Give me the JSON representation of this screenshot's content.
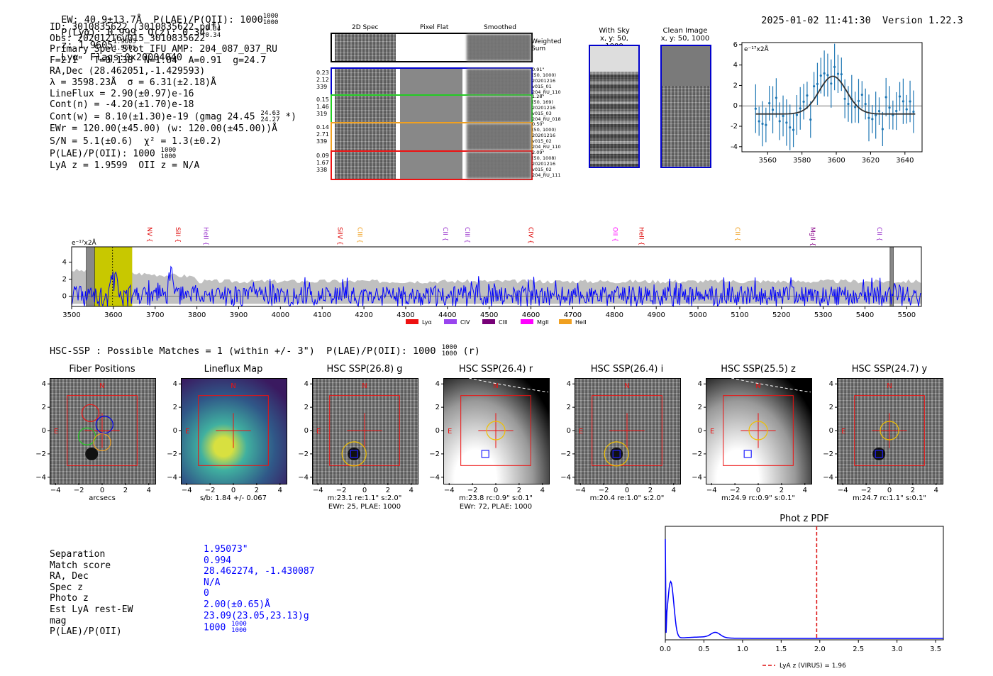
{
  "header": {
    "line": "EW: 40.9±13.7Å  P(LAE)/P(OII): 1000",
    "plae_frac": [
      "1000",
      "1000"
    ],
    "plya": "P(Lyα): 0.999  Q(z): 0.34",
    "q_frac": [
      "0.34",
      "0.34"
    ],
    "z": "z: 1.9605",
    "z_frac": [
      "1.9605",
      "1.9605"
    ],
    "lya_flags": "Lyα  Flags:0x20004040",
    "datetime": "2025-01-02 11:41:30",
    "version": "Version 1.22.3"
  },
  "info": {
    "lines": [
      "ID: 3010835622 (3010835622.pdf)",
      "Obs: 20201216v015_3010835622",
      "Primary Spec_Slot_IFU_AMP: 204_087_037_RU",
      "F=2.1\"  T=0.138  N=1.04  A=0.91  g=24.7",
      "RA,Dec (28.462051,-1.429593)",
      "λ = 3598.23Å  σ = 6.31(±2.18)Å",
      "LineFlux = 2.90(±0.97)e-16",
      "Cont(n) = -4.20(±1.70)e-18",
      "Cont(w) = 8.10(±1.30)e-19 (gmag 24.45",
      "EWr = 120.00(±45.00) (w: 120.00(±45.00))Å",
      "S/N = 5.1(±0.6)  χ² = 1.3(±0.2)",
      "P(LAE)/P(OII): 1000",
      "LyA z = 1.9599  OII z = N/A"
    ],
    "gmag_frac": [
      "24.63",
      "24.27"
    ],
    "gmag_tail": "*)",
    "plae_frac": [
      "1000",
      "1000"
    ]
  },
  "fibers": {
    "headers": [
      "2D Spec",
      "Pixel Flat",
      "Smoothed"
    ],
    "weighted": "Weighted Sum",
    "rows": [
      {
        "left": [
          "0.23",
          "2.12",
          "339"
        ],
        "right": [
          "0.91\"",
          "(50, 1000)",
          "20201216",
          "v015_01",
          "204_RU_110"
        ],
        "color": "#0000cc"
      },
      {
        "left": [
          "0.15",
          "1.46",
          "319"
        ],
        "right": [
          "1.28\"",
          "(50, 169)",
          "20201216",
          "v015_03",
          "204_RU_018"
        ],
        "color": "#22cc22"
      },
      {
        "left": [
          "0.14",
          "2.71",
          "339"
        ],
        "right": [
          "0.50\"",
          "(50, 1000)",
          "20201216",
          "v015_02",
          "204_RU_110"
        ],
        "color": "#f0a020"
      },
      {
        "left": [
          "0.09",
          "1.67",
          "338"
        ],
        "right": [
          "2.09\"",
          "(50, 1008)",
          "20201216",
          "v015_02",
          "204_RU_111"
        ],
        "color": "#ee1111"
      }
    ]
  },
  "sky": {
    "with_sky": [
      "With Sky",
      "x, y: 50, 1000"
    ],
    "clean": [
      "Clean Image",
      "x, y: 50, 1000"
    ]
  },
  "zoom_plot": {
    "units": "e⁻¹⁷x2Å",
    "xticks": [
      "3560",
      "3580",
      "3600",
      "3620",
      "3640"
    ],
    "yticks": [
      "6",
      "4",
      "2",
      "0",
      "-2",
      "-4"
    ]
  },
  "spectrum": {
    "units": "e⁻¹⁷x2Å",
    "xticks": [
      "3500",
      "3600",
      "3700",
      "3800",
      "3900",
      "4000",
      "4100",
      "4200",
      "4300",
      "4400",
      "4500",
      "4600",
      "4700",
      "4800",
      "4900",
      "5000",
      "5100",
      "5200",
      "5300",
      "5400",
      "5500"
    ],
    "yticks": [
      "4",
      "2",
      "0"
    ],
    "lines": [
      {
        "label": "NV",
        "x": 3677,
        "color": "#dd0000"
      },
      {
        "label": "SiII",
        "x": 3745,
        "color": "#dd0000"
      },
      {
        "label": "HeII",
        "x": 3812,
        "color": "#9933cc"
      },
      {
        "label": "SiIV",
        "x": 4133,
        "color": "#dd0000"
      },
      {
        "label": "CIII",
        "x": 4180,
        "color": "#f0a020"
      },
      {
        "label": "CII",
        "x": 4385,
        "color": "#9933cc"
      },
      {
        "label": "CIII",
        "x": 4438,
        "color": "#9933cc"
      },
      {
        "label": "CIV",
        "x": 4590,
        "color": "#dd0000"
      },
      {
        "label": "OII",
        "x": 4792,
        "color": "#ff00ff"
      },
      {
        "label": "HeII",
        "x": 4855,
        "color": "#dd0000"
      },
      {
        "label": "CII",
        "x": 5085,
        "color": "#f0a020"
      },
      {
        "label": "MgII",
        "x": 5265,
        "color": "#880088"
      },
      {
        "label": "CII",
        "x": 5425,
        "color": "#9933cc"
      }
    ],
    "legend": [
      {
        "label": "Lyα",
        "color": "#ee1111"
      },
      {
        "label": "CIV",
        "color": "#9944ee"
      },
      {
        "label": "CIII",
        "color": "#770077"
      },
      {
        "label": "MgII",
        "color": "#ff00ff"
      },
      {
        "label": "HeII",
        "color": "#f0a020"
      }
    ]
  },
  "hsc": {
    "header": "HSC-SSP : Possible Matches = 1 (within +/- 3\")  P(LAE)/P(OII): 1000",
    "header_frac": [
      "1000",
      "1000"
    ],
    "header_tail": "(r)",
    "ticks": [
      "4",
      "2",
      "0",
      "-2",
      "-4"
    ],
    "xticks": [
      "−4",
      "−2",
      "0",
      "2",
      "4"
    ],
    "panels": [
      {
        "title": "Fiber Positions",
        "caption1": "arcsecs",
        "caption2": ""
      },
      {
        "title": "Lineflux Map",
        "caption1": "s/b: 1.84 +/- 0.067",
        "caption2": ""
      },
      {
        "title": "HSC SSP(26.8) g",
        "caption1": "m:23.1  re:1.1\"  s:2.0\"",
        "caption2": "EWr: 25, PLAE: 1000"
      },
      {
        "title": "HSC SSP(26.4) r",
        "caption1": "m:23.8 rc:0.9\"  s:0.1\"",
        "caption2": "EWr: 72, PLAE: 1000"
      },
      {
        "title": "HSC SSP(26.4) i",
        "caption1": "m:20.4  re:1.0\"  s:2.0\"",
        "caption2": ""
      },
      {
        "title": "HSC SSP(25.5) z",
        "caption1": "m:24.9 rc:0.9\"  s:0.1\"",
        "caption2": ""
      },
      {
        "title": "HSC SSP(24.7) y",
        "caption1": "m:24.7 rc:1.1\"  s:0.1\"",
        "caption2": ""
      }
    ],
    "compass_n": "N",
    "compass_e": "E"
  },
  "match": {
    "labels": [
      "Separation",
      "Match score",
      "RA, Dec",
      "Spec z",
      "Photo z",
      "Est LyA rest-EW",
      "mag",
      "P(LAE)/P(OII)"
    ],
    "values": [
      "1.95073\"",
      "0.994",
      "28.462274, -1.430087",
      "N/A",
      "0",
      "2.00(±0.65)Å",
      "23.09(23.05,23.13)g",
      "1000"
    ],
    "plae_frac": [
      "1000",
      "1000"
    ]
  },
  "photz": {
    "title": "Phot z PDF",
    "xticks": [
      "0.0",
      "0.5",
      "1.0",
      "1.5",
      "2.0",
      "2.5",
      "3.0",
      "3.5"
    ],
    "legend": "LyA z (VIRUS) = 1.96",
    "virus_z": 1.96
  }
}
